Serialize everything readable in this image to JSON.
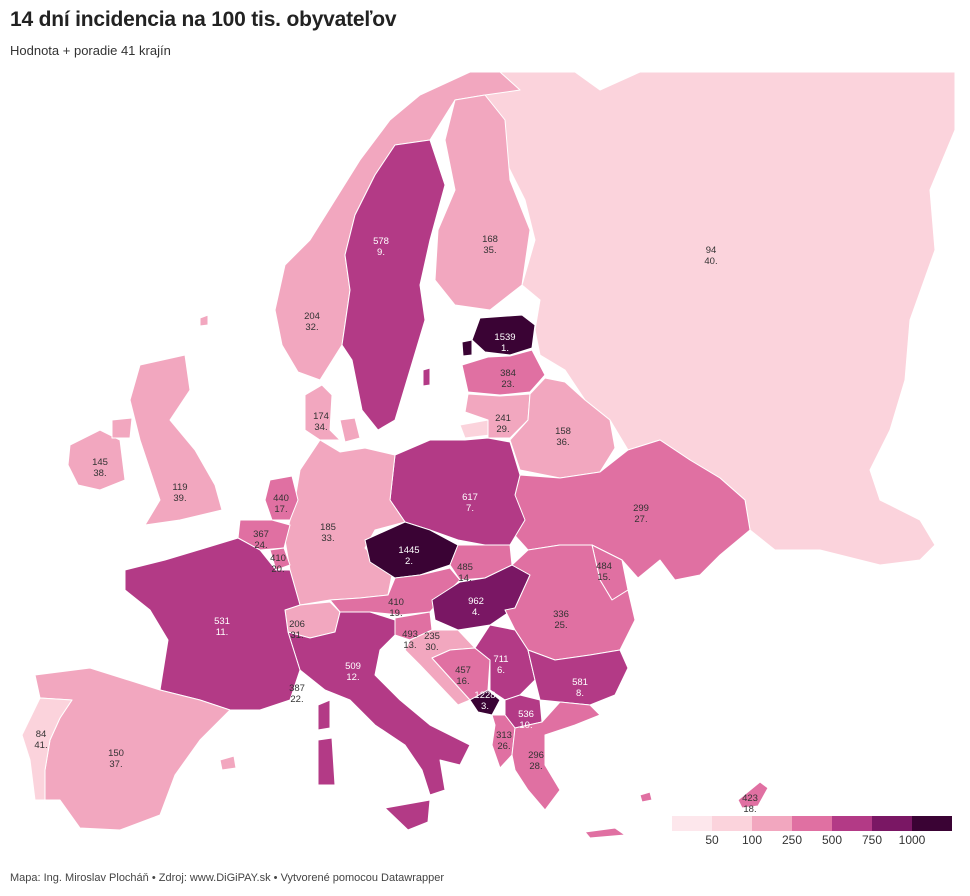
{
  "header": {
    "title": "14 dní incidencia na 100 tis. obyvateľov",
    "subtitle": "Hodnota + poradie 41 krajín"
  },
  "footer": {
    "text": "Mapa: Ing. Miroslav Plocháň • Zdroj: www.DiGiPAY.sk • Vytvorené pomocou Datawrapper"
  },
  "legend": {
    "bins": [
      "#fde7ec",
      "#fbd3dc",
      "#f2a7bf",
      "#e070a2",
      "#b33a86",
      "#7a1764",
      "#3a0334"
    ],
    "ticks": [
      "50",
      "100",
      "250",
      "500",
      "750",
      "1000"
    ]
  },
  "countries": [
    {
      "id": "estonia",
      "value": "1539",
      "rank": "1.",
      "color": "#3a0334"
    },
    {
      "id": "czechia",
      "value": "1445",
      "rank": "2.",
      "color": "#3a0334"
    },
    {
      "id": "montenegro",
      "value": "1228",
      "rank": "3.",
      "color": "#3a0334"
    },
    {
      "id": "hungary",
      "value": "962",
      "rank": "4.",
      "color": "#7a1764"
    },
    {
      "id": "serbia",
      "value": "711",
      "rank": "6.",
      "color": "#b33a86"
    },
    {
      "id": "poland",
      "value": "617",
      "rank": "7.",
      "color": "#b33a86"
    },
    {
      "id": "bulgaria",
      "value": "581",
      "rank": "8.",
      "color": "#b33a86"
    },
    {
      "id": "sweden",
      "value": "578",
      "rank": "9.",
      "color": "#b33a86"
    },
    {
      "id": "north-macedonia",
      "value": "536",
      "rank": "10.",
      "color": "#b33a86"
    },
    {
      "id": "france",
      "value": "531",
      "rank": "11.",
      "color": "#b33a86"
    },
    {
      "id": "italy",
      "value": "509",
      "rank": "12.",
      "color": "#b33a86"
    },
    {
      "id": "slovenia",
      "value": "493",
      "rank": "13.",
      "color": "#e070a2"
    },
    {
      "id": "slovakia",
      "value": "485",
      "rank": "14.",
      "color": "#e070a2"
    },
    {
      "id": "moldova",
      "value": "484",
      "rank": "15.",
      "color": "#e070a2"
    },
    {
      "id": "bosnia",
      "value": "457",
      "rank": "16.",
      "color": "#e070a2"
    },
    {
      "id": "netherlands",
      "value": "440",
      "rank": "17.",
      "color": "#e070a2"
    },
    {
      "id": "cyprus",
      "value": "423",
      "rank": "18.",
      "color": "#e070a2"
    },
    {
      "id": "austria",
      "value": "410",
      "rank": "19.",
      "color": "#e070a2"
    },
    {
      "id": "luxembourg",
      "value": "410",
      "rank": "20.",
      "color": "#e070a2"
    },
    {
      "id": "monaco",
      "value": "387",
      "rank": "22.",
      "color": "#e070a2"
    },
    {
      "id": "latvia",
      "value": "384",
      "rank": "23.",
      "color": "#e070a2"
    },
    {
      "id": "belgium",
      "value": "367",
      "rank": "24.",
      "color": "#e070a2"
    },
    {
      "id": "romania",
      "value": "336",
      "rank": "25.",
      "color": "#e070a2"
    },
    {
      "id": "albania",
      "value": "313",
      "rank": "26.",
      "color": "#e070a2"
    },
    {
      "id": "ukraine",
      "value": "299",
      "rank": "27.",
      "color": "#e070a2"
    },
    {
      "id": "greece",
      "value": "296",
      "rank": "28.",
      "color": "#e070a2"
    },
    {
      "id": "lithuania",
      "value": "241",
      "rank": "29.",
      "color": "#f2a7bf"
    },
    {
      "id": "croatia",
      "value": "235",
      "rank": "30.",
      "color": "#f2a7bf"
    },
    {
      "id": "switzerland",
      "value": "206",
      "rank": "31.",
      "color": "#f2a7bf"
    },
    {
      "id": "norway",
      "value": "204",
      "rank": "32.",
      "color": "#f2a7bf"
    },
    {
      "id": "germany",
      "value": "185",
      "rank": "33.",
      "color": "#f2a7bf"
    },
    {
      "id": "denmark",
      "value": "174",
      "rank": "34.",
      "color": "#f2a7bf"
    },
    {
      "id": "finland",
      "value": "168",
      "rank": "35.",
      "color": "#f2a7bf"
    },
    {
      "id": "belarus",
      "value": "158",
      "rank": "36.",
      "color": "#f2a7bf"
    },
    {
      "id": "spain",
      "value": "150",
      "rank": "37.",
      "color": "#f2a7bf"
    },
    {
      "id": "ireland",
      "value": "145",
      "rank": "38.",
      "color": "#f2a7bf"
    },
    {
      "id": "uk",
      "value": "119",
      "rank": "39.",
      "color": "#f2a7bf"
    },
    {
      "id": "russia",
      "value": "94",
      "rank": "40.",
      "color": "#fbd3dc"
    },
    {
      "id": "portugal",
      "value": "84",
      "rank": "41.",
      "color": "#fbd3dc"
    }
  ]
}
